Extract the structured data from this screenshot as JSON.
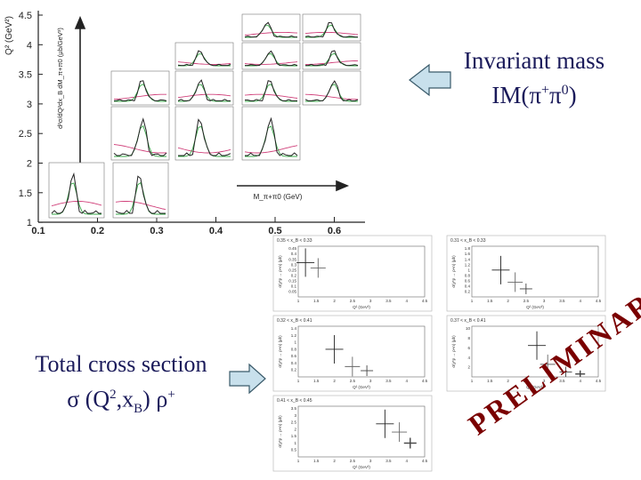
{
  "left_figure": {
    "y_title": "Q² (GeV²)",
    "inner_ylabel": "d²σ/dQ²dx_B dM_π+π0 (μb/GeV³)",
    "inner_xlabel": "M_π+π0 (GeV)",
    "y_ticks": [
      "4.5",
      "4",
      "3.5",
      "3",
      "2.5",
      "2",
      "1.5",
      "1"
    ],
    "x_ticks": [
      "0.1",
      "0.2",
      "0.3",
      "0.4",
      "0.5",
      "0.6"
    ]
  },
  "im_label": {
    "line1": "Invariant mass",
    "line2_prefix": "IM(π",
    "sup1": "+",
    "mid": "π",
    "sup2": "0",
    "suffix": ")"
  },
  "xs_label": {
    "line1": "Total cross section",
    "line2_a": "σ (Q",
    "sup": "2",
    "line2_b": ",x",
    "sub": "B",
    "line2_c": ")  ρ",
    "sup2": "+"
  },
  "preliminary": "PRELIMINARY",
  "colors": {
    "arrow_fill": "#c8e0ec",
    "arrow_stroke": "#3a5a6a",
    "text": "#1a1a5a",
    "prelim": "#7a0000"
  },
  "chart_data": {
    "type": "scatter",
    "panels": [
      {
        "title": "0.35 < x_B < 0.33",
        "xlabel": "Q² (GeV²)",
        "ylabel": "σ(γ*p → ρ+n) (μb)",
        "y_ticks": [
          "0.45",
          "0.4",
          "0.35",
          "0.3",
          "0.25",
          "0.2",
          "0.15",
          "0.1",
          "0.05"
        ],
        "x_ticks": [
          "1",
          "1.5",
          "2",
          "2.5",
          "3",
          "3.5",
          "4",
          "4.5"
        ],
        "points": [
          {
            "x": 1.2,
            "y": 0.32
          },
          {
            "x": 1.55,
            "y": 0.27
          }
        ]
      },
      {
        "title": "0.31 < x_B < 0.33",
        "xlabel": "Q² (GeV²)",
        "ylabel": "σ(γ*p → ρ+n) (μb)",
        "y_ticks": [
          "1.8",
          "1.6",
          "1.4",
          "1.2",
          "1",
          "0.8",
          "0.6",
          "0.4",
          "0.2"
        ],
        "x_ticks": [
          "1",
          "1.5",
          "2",
          "2.5",
          "3",
          "3.5",
          "4",
          "4.5"
        ],
        "points": [
          {
            "x": 1.8,
            "y": 1.0
          },
          {
            "x": 2.2,
            "y": 0.55
          },
          {
            "x": 2.5,
            "y": 0.3
          }
        ]
      },
      {
        "title": "0.32 < x_B < 0.41",
        "xlabel": "Q² (GeV²)",
        "ylabel": "σ(γ*p → ρ+n) (μb)",
        "y_ticks": [
          "1.4",
          "1.2",
          "1",
          "0.8",
          "0.6",
          "0.4",
          "0.2"
        ],
        "x_ticks": [
          "1",
          "1.5",
          "2",
          "2.5",
          "3",
          "3.5",
          "4",
          "4.5"
        ],
        "points": [
          {
            "x": 2.0,
            "y": 0.8
          },
          {
            "x": 2.5,
            "y": 0.3
          },
          {
            "x": 2.9,
            "y": 0.18
          }
        ]
      },
      {
        "title": "0.37 < x_B < 0.41",
        "xlabel": "Q² (GeV²)",
        "ylabel": "σ(γ*p → ρ+n) (μb)",
        "y_ticks": [
          "10",
          "8",
          "6",
          "4",
          "2"
        ],
        "x_ticks": [
          "1",
          "1.5",
          "2",
          "2.5",
          "3",
          "3.5",
          "4",
          "4.5"
        ],
        "points": [
          {
            "x": 2.8,
            "y": 6.5
          },
          {
            "x": 3.1,
            "y": 2.6
          },
          {
            "x": 3.6,
            "y": 1.0
          },
          {
            "x": 4.0,
            "y": 0.6
          }
        ]
      },
      {
        "title": "0.41 < x_B < 0.45",
        "xlabel": "Q² (GeV²)",
        "ylabel": "σ(γ*p → ρ+n) (μb)",
        "y_ticks": [
          "3.5",
          "3",
          "2.5",
          "2",
          "1.5",
          "1",
          "0.5"
        ],
        "x_ticks": [
          "1",
          "1.5",
          "2",
          "2.5",
          "3",
          "3.5",
          "4",
          "4.5"
        ],
        "points": [
          {
            "x": 3.4,
            "y": 2.4
          },
          {
            "x": 3.8,
            "y": 1.8
          },
          {
            "x": 4.1,
            "y": 1.0
          }
        ]
      }
    ]
  }
}
